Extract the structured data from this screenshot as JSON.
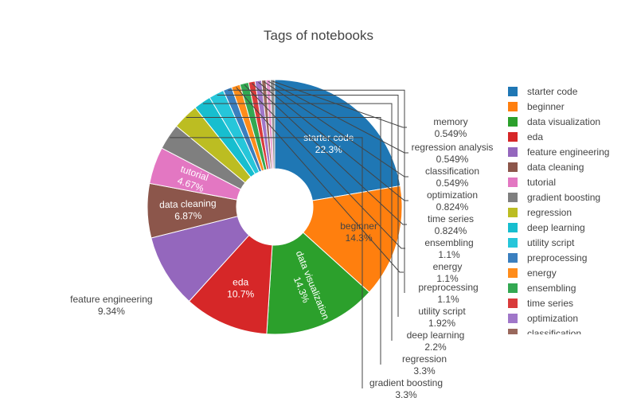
{
  "chart_data": {
    "type": "pie",
    "hole": true,
    "title": "Tags of notebooks",
    "legend_placement": "right",
    "slices": [
      {
        "label": "starter code",
        "percent": "22.3%",
        "value": 22.3,
        "color": "#1f77b4",
        "text_pos": "inside"
      },
      {
        "label": "beginner",
        "percent": "14.3%",
        "value": 14.3,
        "color": "#ff7f0e",
        "text_pos": "inside"
      },
      {
        "label": "data visualization",
        "percent": "14.3%",
        "value": 14.3,
        "color": "#2ca02c",
        "text_pos": "inside-rot"
      },
      {
        "label": "eda",
        "percent": "10.7%",
        "value": 10.7,
        "color": "#d62728",
        "text_pos": "inside"
      },
      {
        "label": "feature engineering",
        "percent": "9.34%",
        "value": 9.34,
        "color": "#9467bd",
        "text_pos": "outside"
      },
      {
        "label": "data cleaning",
        "percent": "6.87%",
        "value": 6.87,
        "color": "#8c564b",
        "text_pos": "inside-rot"
      },
      {
        "label": "tutorial",
        "percent": "4.67%",
        "value": 4.67,
        "color": "#e377c2",
        "text_pos": "inside-rot"
      },
      {
        "label": "gradient boosting",
        "percent": "3.3%",
        "value": 3.3,
        "color": "#7f7f7f",
        "text_pos": "leader"
      },
      {
        "label": "regression",
        "percent": "3.3%",
        "value": 3.3,
        "color": "#bcbd22",
        "text_pos": "leader"
      },
      {
        "label": "deep learning",
        "percent": "2.2%",
        "value": 2.2,
        "color": "#17becf",
        "text_pos": "leader"
      },
      {
        "label": "utility script",
        "percent": "1.92%",
        "value": 1.92,
        "color": "#26c6da",
        "text_pos": "leader"
      },
      {
        "label": "preprocessing",
        "percent": "1.1%",
        "value": 1.1,
        "color": "#3a7fbf",
        "text_pos": "leader"
      },
      {
        "label": "energy",
        "percent": "1.1%",
        "value": 1.1,
        "color": "#ff8c1a",
        "text_pos": "leader"
      },
      {
        "label": "ensembling",
        "percent": "1.1%",
        "value": 1.1,
        "color": "#33a852",
        "text_pos": "leader"
      },
      {
        "label": "time series",
        "percent": "0.824%",
        "value": 0.824,
        "color": "#d93b3b",
        "text_pos": "leader"
      },
      {
        "label": "optimization",
        "percent": "0.824%",
        "value": 0.824,
        "color": "#a077c9",
        "text_pos": "leader"
      },
      {
        "label": "classification",
        "percent": "0.549%",
        "value": 0.549,
        "color": "#99685c",
        "text_pos": "leader"
      },
      {
        "label": "regression analysis",
        "percent": "0.549%",
        "value": 0.549,
        "color": "#e893cc",
        "text_pos": "leader"
      },
      {
        "label": "memory",
        "percent": "0.549%",
        "value": 0.549,
        "color": "#8f8f8f",
        "text_pos": "leader"
      }
    ],
    "legend_entries": [
      "starter code",
      "beginner",
      "data visualization",
      "eda",
      "feature engineering",
      "data cleaning",
      "tutorial",
      "gradient boosting",
      "regression",
      "deep learning",
      "utility script",
      "preprocessing",
      "energy",
      "ensembling",
      "time series",
      "optimization",
      "classification"
    ]
  }
}
